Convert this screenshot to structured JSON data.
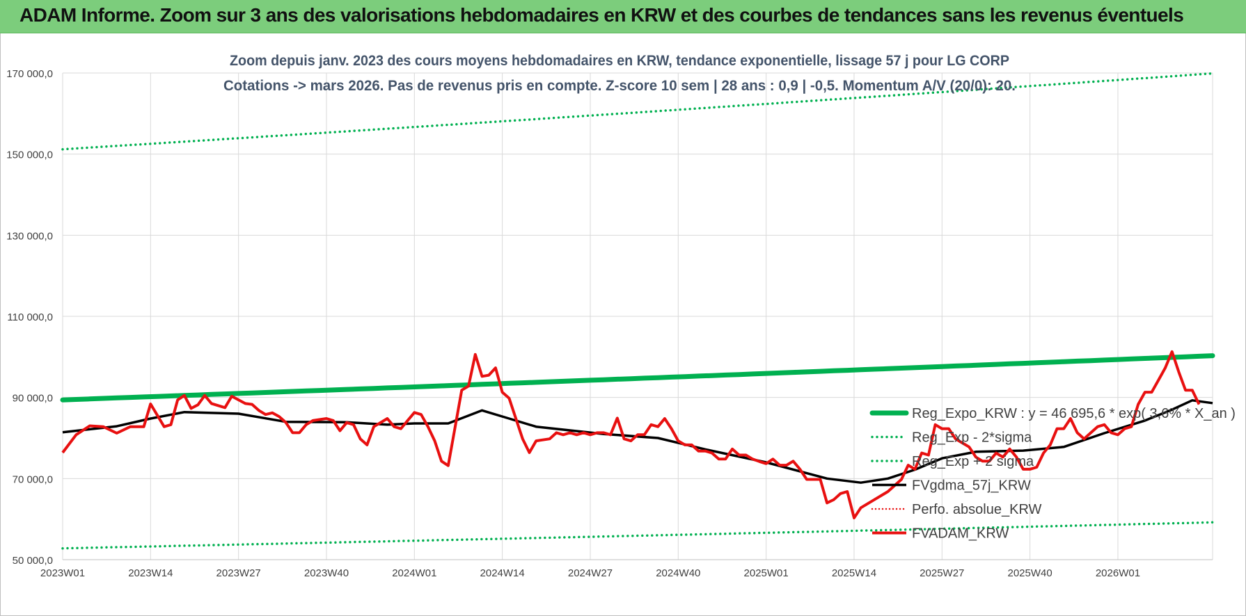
{
  "banner": {
    "title": "ADAM Informe. Zoom sur 3 ans des valorisations hebdomadaires en KRW et des courbes de tendances sans les revenus éventuels"
  },
  "colors": {
    "banner_bg": "#7ccd7c",
    "trend": "#00b050",
    "price": "#e81010",
    "smooth": "#000000",
    "perf": "#e81010",
    "grid": "#d9d9d9",
    "text": "#404040",
    "title_text": "#44546a"
  },
  "chart_data": {
    "type": "line",
    "title_line1": "Zoom depuis janv. 2023 des cours moyens hebdomadaires en KRW, tendance exponentielle, lissage 57 j pour LG CORP",
    "title_line2": "Cotations -> mars 2026. Pas de revenus pris en compte. Z-score 10 sem | 28 ans : 0,9 | -0,5. Momentum A/V (20/0): 20.",
    "ylim": [
      50000,
      170000
    ],
    "y_ticks": [
      {
        "value": 50000,
        "label": "50 000,0"
      },
      {
        "value": 70000,
        "label": "70 000,0"
      },
      {
        "value": 90000,
        "label": "90 000,0"
      },
      {
        "value": 110000,
        "label": "110 000,0"
      },
      {
        "value": 130000,
        "label": "130 000,0"
      },
      {
        "value": 150000,
        "label": "150 000,0"
      },
      {
        "value": 170000,
        "label": "170 000,0"
      }
    ],
    "x_count": 170,
    "x_ticks": [
      {
        "index": 0,
        "label": "2023W01"
      },
      {
        "index": 13,
        "label": "2023W14"
      },
      {
        "index": 26,
        "label": "2023W27"
      },
      {
        "index": 39,
        "label": "2023W40"
      },
      {
        "index": 52,
        "label": "2024W01"
      },
      {
        "index": 65,
        "label": "2024W14"
      },
      {
        "index": 78,
        "label": "2024W27"
      },
      {
        "index": 91,
        "label": "2024W40"
      },
      {
        "index": 104,
        "label": "2025W01"
      },
      {
        "index": 117,
        "label": "2025W14"
      },
      {
        "index": 130,
        "label": "2025W27"
      },
      {
        "index": 143,
        "label": "2025W40"
      },
      {
        "index": 156,
        "label": "2026W01"
      }
    ],
    "series": [
      {
        "name": "Reg_Expo_KRW : y = 46 695,6 * exp( 3,6% *  X_an )",
        "style": "trend",
        "start": 89400,
        "end": 100300
      },
      {
        "name": "Reg_Exp - 2*sigma",
        "style": "band",
        "start": 52800,
        "end": 59200
      },
      {
        "name": "Reg_Exp + 2 sigma",
        "style": "band",
        "start": 151200,
        "end": 169900
      },
      {
        "name": "FVgdma_57j_KRW",
        "style": "smooth",
        "points": [
          [
            0,
            81400
          ],
          [
            8,
            82900
          ],
          [
            13,
            84800
          ],
          [
            18,
            86400
          ],
          [
            26,
            86000
          ],
          [
            33,
            84000
          ],
          [
            42,
            83900
          ],
          [
            48,
            83300
          ],
          [
            52,
            83600
          ],
          [
            57,
            83600
          ],
          [
            62,
            86800
          ],
          [
            66,
            84800
          ],
          [
            70,
            82800
          ],
          [
            80,
            81000
          ],
          [
            88,
            80000
          ],
          [
            95,
            77200
          ],
          [
            104,
            74000
          ],
          [
            113,
            70000
          ],
          [
            118,
            69000
          ],
          [
            122,
            70000
          ],
          [
            126,
            72200
          ],
          [
            130,
            75000
          ],
          [
            135,
            76600
          ],
          [
            142,
            76900
          ],
          [
            148,
            77800
          ],
          [
            154,
            81200
          ],
          [
            160,
            84300
          ],
          [
            164,
            87000
          ],
          [
            167,
            89300
          ],
          [
            170,
            88600
          ]
        ]
      },
      {
        "name": "Perfo. absolue_KRW",
        "style": "perf",
        "points": []
      },
      {
        "name": "FVADAM_KRW",
        "style": "price",
        "points": [
          [
            0,
            76400
          ],
          [
            2,
            80800
          ],
          [
            4,
            83000
          ],
          [
            6,
            82800
          ],
          [
            8,
            81200
          ],
          [
            10,
            82800
          ],
          [
            12,
            82800
          ],
          [
            13,
            88400
          ],
          [
            15,
            82800
          ],
          [
            16,
            83300
          ],
          [
            17,
            89400
          ],
          [
            18,
            90500
          ],
          [
            19,
            87300
          ],
          [
            20,
            88200
          ],
          [
            21,
            90500
          ],
          [
            22,
            88500
          ],
          [
            24,
            87500
          ],
          [
            25,
            90300
          ],
          [
            27,
            88500
          ],
          [
            28,
            88300
          ],
          [
            29,
            86800
          ],
          [
            30,
            85800
          ],
          [
            31,
            86200
          ],
          [
            32,
            85300
          ],
          [
            33,
            83800
          ],
          [
            34,
            81300
          ],
          [
            35,
            81300
          ],
          [
            36,
            83300
          ],
          [
            37,
            84300
          ],
          [
            39,
            84800
          ],
          [
            40,
            84300
          ],
          [
            41,
            81800
          ],
          [
            42,
            83800
          ],
          [
            43,
            83300
          ],
          [
            44,
            79800
          ],
          [
            45,
            78300
          ],
          [
            46,
            82800
          ],
          [
            47,
            83800
          ],
          [
            48,
            84800
          ],
          [
            49,
            82800
          ],
          [
            50,
            82300
          ],
          [
            51,
            84300
          ],
          [
            52,
            86300
          ],
          [
            53,
            85800
          ],
          [
            54,
            82800
          ],
          [
            55,
            79300
          ],
          [
            56,
            74300
          ],
          [
            57,
            73200
          ],
          [
            59,
            91800
          ],
          [
            60,
            92800
          ],
          [
            61,
            100600
          ],
          [
            62,
            95200
          ],
          [
            63,
            95500
          ],
          [
            64,
            97300
          ],
          [
            65,
            91300
          ],
          [
            66,
            89800
          ],
          [
            67,
            84800
          ],
          [
            68,
            79800
          ],
          [
            69,
            76400
          ],
          [
            70,
            79300
          ],
          [
            72,
            79800
          ],
          [
            73,
            81300
          ],
          [
            74,
            80800
          ],
          [
            75,
            81300
          ],
          [
            76,
            80800
          ],
          [
            77,
            81300
          ],
          [
            78,
            80800
          ],
          [
            79,
            81300
          ],
          [
            80,
            81300
          ],
          [
            81,
            80800
          ],
          [
            82,
            84900
          ],
          [
            83,
            79800
          ],
          [
            84,
            79300
          ],
          [
            85,
            80800
          ],
          [
            86,
            80800
          ],
          [
            87,
            83300
          ],
          [
            88,
            82800
          ],
          [
            89,
            84800
          ],
          [
            90,
            82300
          ],
          [
            91,
            79300
          ],
          [
            92,
            78300
          ],
          [
            93,
            78300
          ],
          [
            94,
            76800
          ],
          [
            95,
            76800
          ],
          [
            96,
            76300
          ],
          [
            97,
            74800
          ],
          [
            98,
            74800
          ],
          [
            99,
            77300
          ],
          [
            100,
            75800
          ],
          [
            101,
            75800
          ],
          [
            102,
            74800
          ],
          [
            103,
            74200
          ],
          [
            104,
            73700
          ],
          [
            105,
            74800
          ],
          [
            106,
            73300
          ],
          [
            107,
            73300
          ],
          [
            108,
            74300
          ],
          [
            109,
            72300
          ],
          [
            110,
            69800
          ],
          [
            111,
            69800
          ],
          [
            112,
            69800
          ],
          [
            113,
            64000
          ],
          [
            114,
            64800
          ],
          [
            115,
            66300
          ],
          [
            116,
            66800
          ],
          [
            117,
            60300
          ],
          [
            118,
            62800
          ],
          [
            120,
            64800
          ],
          [
            122,
            66800
          ],
          [
            124,
            69800
          ],
          [
            125,
            73300
          ],
          [
            126,
            72300
          ],
          [
            127,
            76300
          ],
          [
            128,
            75800
          ],
          [
            129,
            83300
          ],
          [
            130,
            82300
          ],
          [
            131,
            82300
          ],
          [
            132,
            79800
          ],
          [
            133,
            78800
          ],
          [
            134,
            77800
          ],
          [
            135,
            75300
          ],
          [
            136,
            74300
          ],
          [
            137,
            74300
          ],
          [
            138,
            76300
          ],
          [
            139,
            75300
          ],
          [
            140,
            77300
          ],
          [
            141,
            75300
          ],
          [
            142,
            72300
          ],
          [
            143,
            72300
          ],
          [
            144,
            72800
          ],
          [
            145,
            76300
          ],
          [
            146,
            78300
          ],
          [
            147,
            82300
          ],
          [
            148,
            82300
          ],
          [
            149,
            84800
          ],
          [
            150,
            81300
          ],
          [
            151,
            79800
          ],
          [
            152,
            81300
          ],
          [
            153,
            82800
          ],
          [
            154,
            83300
          ],
          [
            155,
            81300
          ],
          [
            156,
            80800
          ],
          [
            157,
            82300
          ],
          [
            158,
            82800
          ],
          [
            159,
            88300
          ],
          [
            160,
            91300
          ],
          [
            161,
            91300
          ],
          [
            162,
            94300
          ],
          [
            163,
            97300
          ],
          [
            164,
            101300
          ],
          [
            165,
            96300
          ],
          [
            166,
            91800
          ],
          [
            167,
            91800
          ],
          [
            168,
            88300
          ]
        ]
      }
    ],
    "legend_position": "right-lower"
  }
}
